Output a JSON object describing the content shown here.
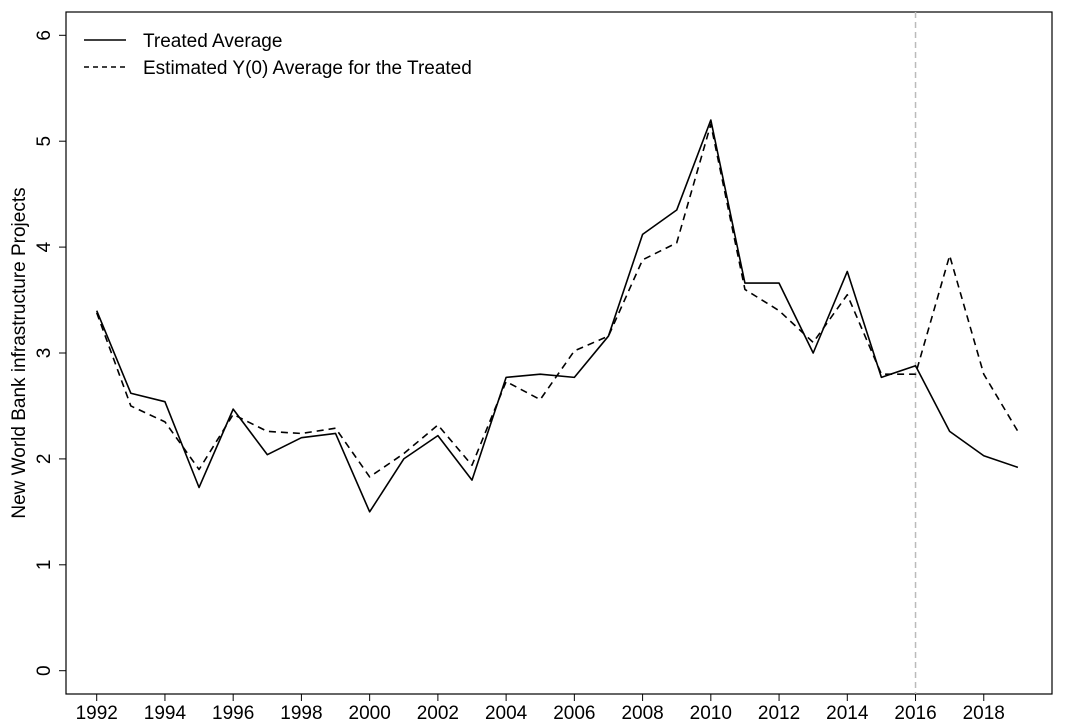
{
  "chart_data": {
    "type": "line",
    "x": [
      1992,
      1993,
      1994,
      1995,
      1996,
      1997,
      1998,
      1999,
      2000,
      2001,
      2002,
      2003,
      2004,
      2005,
      2006,
      2007,
      2008,
      2009,
      2010,
      2011,
      2012,
      2013,
      2014,
      2015,
      2016,
      2017,
      2018,
      2019
    ],
    "series": [
      {
        "name": "Treated Average",
        "line_style": "solid",
        "color": "#000000",
        "values": [
          3.4,
          2.62,
          2.54,
          1.73,
          2.47,
          2.04,
          2.2,
          2.24,
          1.5,
          2.0,
          2.22,
          1.8,
          2.77,
          2.8,
          2.77,
          3.16,
          4.12,
          4.35,
          5.2,
          3.66,
          3.66,
          3.0,
          3.77,
          2.77,
          2.88,
          2.26,
          2.03,
          1.92
        ]
      },
      {
        "name": "Estimated Y(0) Average for the Treated",
        "line_style": "dashed",
        "color": "#000000",
        "values": [
          3.38,
          2.5,
          2.35,
          1.9,
          2.42,
          2.26,
          2.24,
          2.29,
          1.83,
          2.05,
          2.32,
          1.94,
          2.73,
          2.56,
          3.02,
          3.16,
          3.88,
          4.04,
          5.16,
          3.6,
          3.4,
          3.1,
          3.55,
          2.8,
          2.8,
          3.92,
          2.8,
          2.26
        ]
      }
    ],
    "xlabel": "",
    "ylabel": "New World Bank infrastructure Projects",
    "xticks": [
      "1992",
      "1994",
      "1996",
      "1998",
      "2000",
      "2002",
      "2004",
      "2006",
      "2008",
      "2010",
      "2012",
      "2014",
      "2016",
      "2018"
    ],
    "yticks": [
      "0",
      "1",
      "2",
      "3",
      "4",
      "5",
      "6"
    ],
    "xlim": [
      1991.1,
      2020.0
    ],
    "ylim": [
      -0.22,
      6.22
    ],
    "vertical_reference_line": {
      "x": 2016,
      "style": "dashed",
      "color": "#bbbbbb"
    },
    "legend": {
      "placement": "top-left",
      "entries": [
        "Treated Average",
        "Estimated Y(0) Average for the Treated"
      ]
    },
    "grid": false
  }
}
